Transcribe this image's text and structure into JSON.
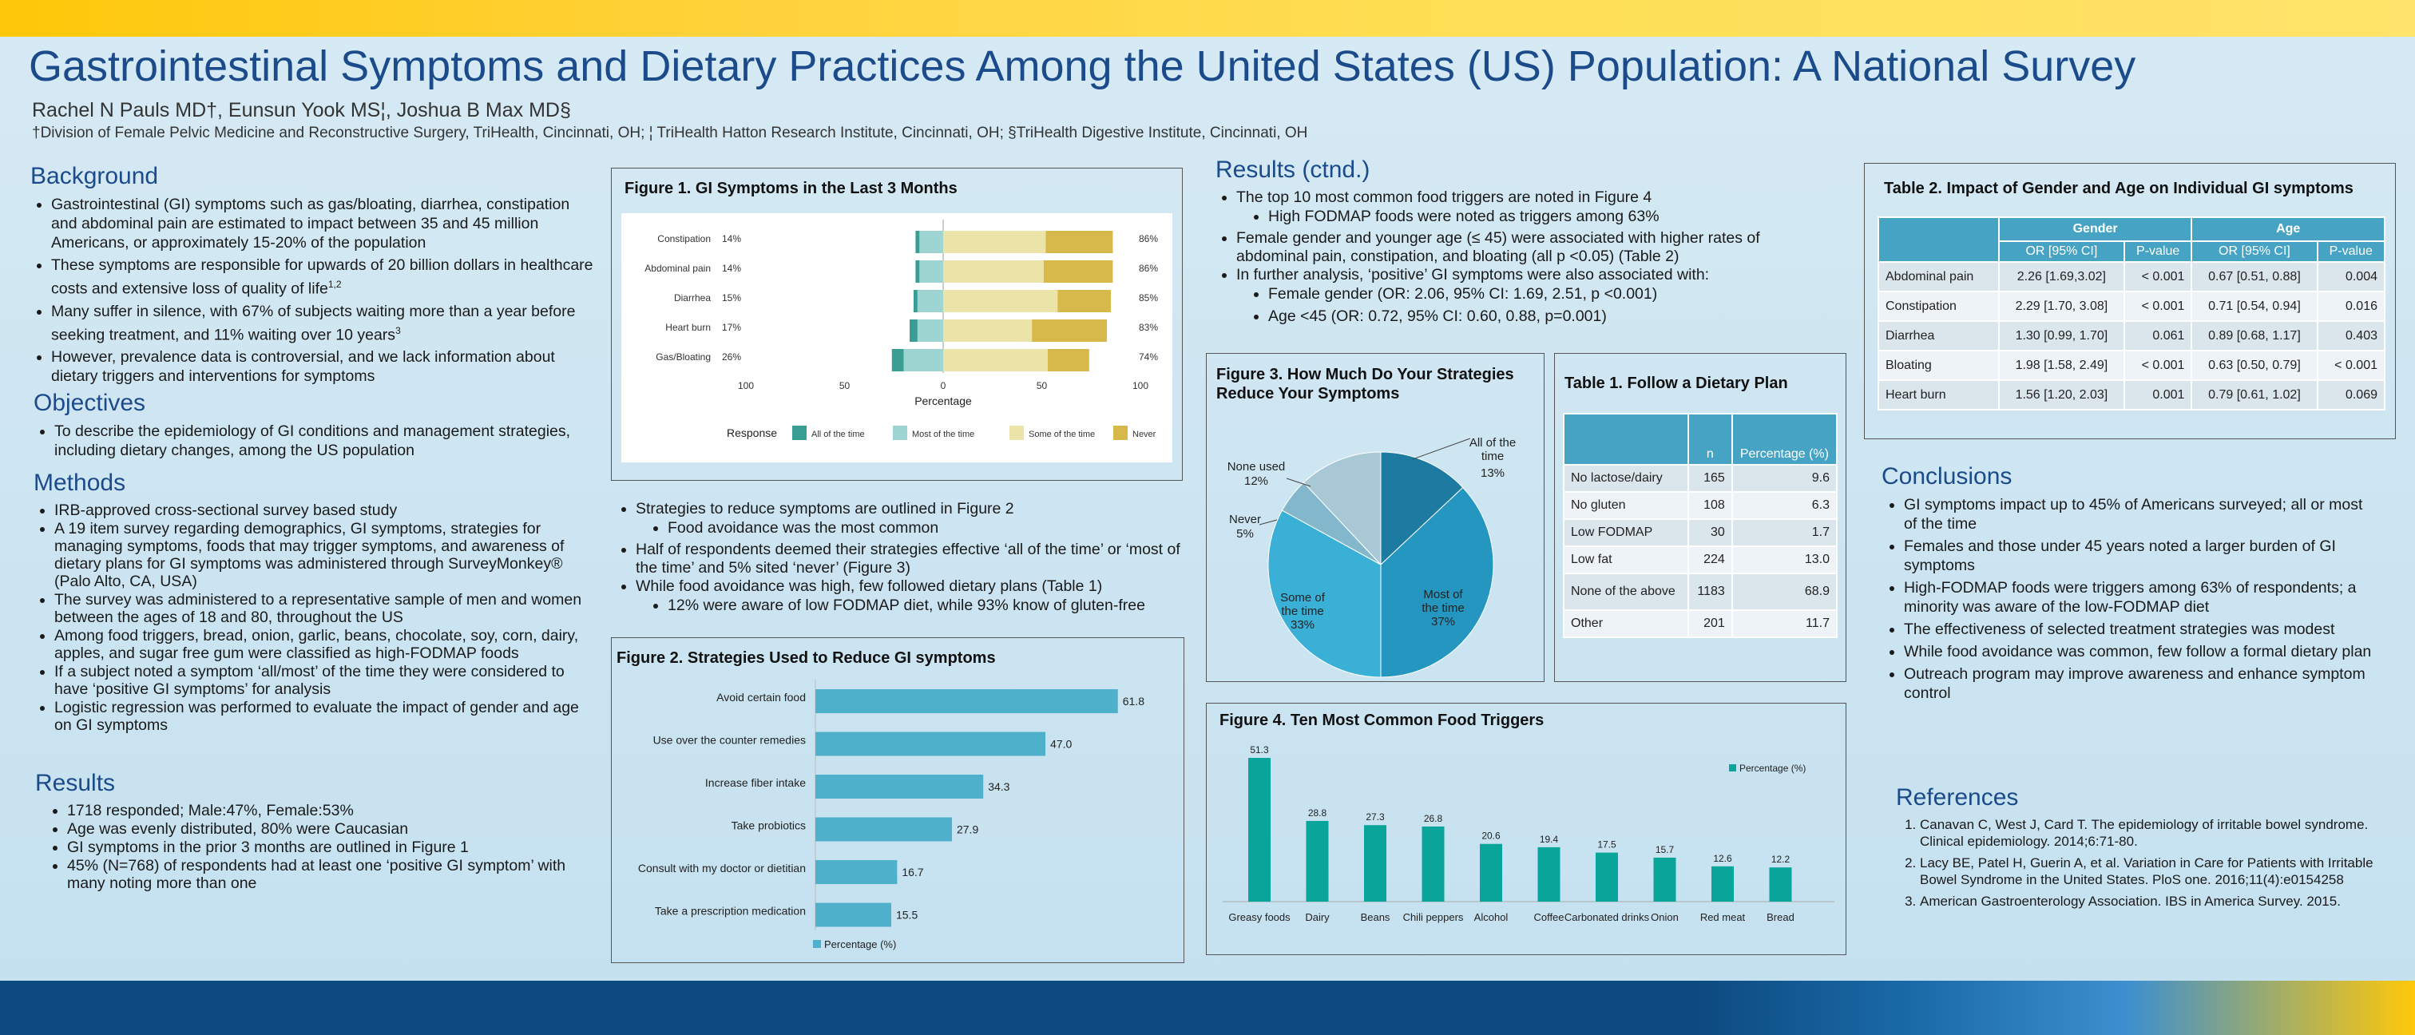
{
  "header": {
    "title": "Gastrointestinal Symptoms and Dietary Practices Among the United States (US) Population: A National Survey",
    "authors": "Rachel N Pauls MD†, Eunsun Yook MS¦, Joshua B Max MD§",
    "affiliations": "†Division of Female Pelvic Medicine and Reconstructive Surgery, TriHealth, Cincinnati, OH; ¦ TriHealth Hatton Research Institute, Cincinnati, OH; §TriHealth Digestive Institute, Cincinnati, OH"
  },
  "background": {
    "heading": "Background",
    "items": [
      "Gastrointestinal (GI) symptoms such as gas/bloating, diarrhea, constipation and abdominal pain are estimated to impact between 35 and 45 million Americans, or approximately 15-20% of the population",
      "These symptoms are responsible for upwards of 20 billion dollars in healthcare costs and extensive loss of quality of life",
      "Many suffer in silence, with 67% of subjects waiting more than a year before seeking treatment, and 11% waiting over 10 years",
      "However, prevalence data is controversial, and we lack information about dietary triggers and interventions for symptoms"
    ],
    "sup": [
      "",
      "1,2",
      "3",
      ""
    ]
  },
  "objectives": {
    "heading": "Objectives",
    "items": [
      "To describe the epidemiology of GI conditions and management strategies, including dietary changes, among the US population"
    ]
  },
  "methods": {
    "heading": "Methods",
    "items": [
      "IRB-approved cross-sectional survey based study",
      "A 19 item survey regarding demographics, GI symptoms, strategies for managing symptoms, foods that may trigger symptoms, and awareness of dietary plans for GI symptoms was administered through SurveyMonkey® (Palo Alto, CA, USA)",
      "The survey was administered to a representative sample of men and women between the ages of 18 and 80, throughout the US",
      "Among food triggers, bread, onion, garlic, beans, chocolate, soy, corn, dairy, apples, and sugar free gum were classified as high-FODMAP foods",
      "If a subject noted a symptom ‘all/most’ of the time they were considered to have ‘positive GI symptoms’ for analysis",
      "Logistic regression was performed to evaluate the impact of gender and age on GI symptoms"
    ]
  },
  "results": {
    "heading": "Results",
    "items": [
      "1718 responded; Male:47%, Female:53%",
      "Age was evenly distributed, 80% were Caucasian",
      "GI symptoms in the prior 3 months are outlined in Figure 1",
      "45% (N=768) of respondents had at least one ‘positive GI symptom’ with many noting more than one"
    ]
  },
  "middle_text": {
    "items": [
      {
        "text": "Strategies to reduce symptoms are outlined in Figure 2",
        "sub": [
          "Food avoidance was the most common"
        ]
      },
      {
        "text": "Half of respondents deemed their strategies effective ‘all of the time’  or ‘most of the time’ and  5% sited ‘never’ (Figure 3)",
        "sub": []
      },
      {
        "text": "While food avoidance was high, few followed dietary plans (Table 1)",
        "sub": [
          "12% were aware of low FODMAP diet, while 93% know of gluten-free"
        ]
      }
    ]
  },
  "results_ctnd": {
    "heading": "Results (ctnd.)",
    "items": [
      {
        "text": "The top 10 most common food triggers are noted in Figure 4",
        "sub": [
          "High FODMAP foods were noted as triggers among 63%"
        ]
      },
      {
        "text": "Female gender and younger age (≤ 45) were associated with higher rates of abdominal pain, constipation, and bloating (all p <0.05) (Table 2)",
        "sub": []
      },
      {
        "text": "In further analysis, ‘positive’ GI symptoms were also associated with:",
        "sub": [
          "Female gender (OR: 2.06, 95% CI: 1.69, 2.51, p <0.001)",
          "Age <45 (OR: 0.72, 95% CI: 0.60, 0.88, p=0.001)"
        ]
      }
    ]
  },
  "conclusions": {
    "heading": "Conclusions",
    "items": [
      "GI symptoms impact up to 45% of Americans surveyed; all or most of the time",
      "Females and  those under 45 years noted a larger burden of GI symptoms",
      "High-FODMAP foods were triggers among 63% of respondents; a minority was aware of the low-FODMAP diet",
      "The effectiveness of selected treatment strategies was modest",
      "While food avoidance was common, few follow a formal dietary plan",
      "Outreach program may improve awareness and enhance symptom control"
    ]
  },
  "references": {
    "heading": "References",
    "items": [
      "Canavan C, West J, Card T. The epidemiology of irritable bowel syndrome. Clinical epidemiology. 2014;6:71-80.",
      "Lacy BE, Patel H, Guerin A, et al. Variation in Care for Patients with Irritable Bowel Syndrome in the United States. PloS one. 2016;11(4):e0154258",
      "American Gastroenterology Association. IBS in America Survey. 2015."
    ]
  },
  "table1": {
    "title": "Table 1. Follow a Dietary Plan",
    "headers": [
      "",
      "n",
      "Percentage (%)"
    ],
    "rows": [
      [
        "No lactose/dairy",
        "165",
        "9.6"
      ],
      [
        "No gluten",
        "108",
        "6.3"
      ],
      [
        "Low FODMAP",
        "30",
        "1.7"
      ],
      [
        "Low fat",
        "224",
        "13.0"
      ],
      [
        "None of the above",
        "1183",
        "68.9"
      ],
      [
        "Other",
        "201",
        "11.7"
      ]
    ]
  },
  "table2": {
    "title": "Table 2. Impact of Gender and Age on Individual GI symptoms",
    "group_headers": [
      "Gender",
      "Age"
    ],
    "headers": [
      "",
      "OR [95% CI]",
      "P-value",
      "OR [95% CI]",
      "P-value"
    ],
    "rows": [
      [
        "Abdominal pain",
        "2.26 [1.69,3.02]",
        "< 0.001",
        "0.67 [0.51, 0.88]",
        "0.004"
      ],
      [
        "Constipation",
        "2.29 [1.70, 3.08]",
        "< 0.001",
        "0.71 [0.54, 0.94]",
        "0.016"
      ],
      [
        "Diarrhea",
        "1.30 [0.99, 1.70]",
        "0.061",
        "0.89 [0.68, 1.17]",
        "0.403"
      ],
      [
        "Bloating",
        "1.98 [1.58, 2.49]",
        "< 0.001",
        "0.63 [0.50, 0.79]",
        "< 0.001"
      ],
      [
        "Heart burn",
        "1.56 [1.20, 2.03]",
        "0.001",
        "0.79 [0.61, 1.02]",
        "0.069"
      ]
    ]
  },
  "colors": {
    "all": "#3a9d93",
    "most": "#9ed4d1",
    "some": "#ece3a8",
    "never": "#d6b94a",
    "bar": "#4fb0cb",
    "teal": "#0aa59a",
    "title": "#1b4b8a"
  },
  "chart_data": [
    {
      "id": "figure1",
      "type": "bar",
      "orientation": "horizontal-diverging",
      "title": "Figure 1. GI Symptoms in the Last 3 Months",
      "xlabel": "Percentage",
      "xlim": [
        -100,
        100
      ],
      "xticks": [
        "100",
        "50",
        "0",
        "50",
        "100"
      ],
      "legend_title": "Response",
      "categories": [
        "Constipation",
        "Abdominal pain",
        "Diarrhea",
        "Heart burn",
        "Gas/Bloating"
      ],
      "left_labels": [
        "14%",
        "14%",
        "15%",
        "17%",
        "26%"
      ],
      "right_labels": [
        "86%",
        "86%",
        "85%",
        "83%",
        "74%"
      ],
      "series": [
        {
          "name": "All of the time",
          "values": [
            2,
            2,
            2,
            4,
            6
          ]
        },
        {
          "name": "Most of the time",
          "values": [
            12,
            12,
            13,
            13,
            20
          ]
        },
        {
          "name": "Some of the time",
          "values": [
            52,
            51,
            58,
            45,
            53
          ]
        },
        {
          "name": "Never",
          "values": [
            34,
            35,
            27,
            38,
            21
          ]
        }
      ]
    },
    {
      "id": "figure2",
      "type": "bar",
      "orientation": "horizontal",
      "title": "Figure 2. Strategies Used to Reduce GI symptoms",
      "legend": "Percentage (%)",
      "categories": [
        "Avoid certain food",
        "Use over the counter remedies",
        "Increase fiber intake",
        "Take probiotics",
        "Consult with my doctor or dietitian",
        "Take a prescription medication"
      ],
      "values": [
        61.8,
        47.0,
        34.3,
        27.9,
        16.7,
        15.5
      ],
      "value_labels": [
        "61.8",
        "47.0",
        "34.3",
        "27.9",
        "16.7",
        "15.5"
      ],
      "xlim": [
        0,
        70
      ]
    },
    {
      "id": "figure3",
      "type": "pie",
      "title": "Figure 3. How Much Do Your Strategies Reduce Your Symptoms",
      "slices": [
        {
          "label": "All of the time",
          "pct": "13%",
          "value": 13
        },
        {
          "label": "Most of the time",
          "pct": "37%",
          "value": 37
        },
        {
          "label": "Some of the time",
          "pct": "33%",
          "value": 33
        },
        {
          "label": "Never",
          "pct": "5%",
          "value": 5
        },
        {
          "label": "None used",
          "pct": "12%",
          "value": 12
        }
      ]
    },
    {
      "id": "figure4",
      "type": "bar",
      "title": "Figure  4. Ten Most Common Food Triggers",
      "legend": "Percentage (%)",
      "categories": [
        "Greasy foods",
        "Dairy",
        "Beans",
        "Chili peppers",
        "Alcohol",
        "Coffee",
        "Carbonated drinks",
        "Onion",
        "Red meat",
        "Bread"
      ],
      "values": [
        51.3,
        28.8,
        27.3,
        26.8,
        20.6,
        19.4,
        17.5,
        15.7,
        12.6,
        12.2
      ],
      "value_labels": [
        "51.3",
        "28.8",
        "27.3",
        "26.8",
        "20.6",
        "19.4",
        "17.5",
        "15.7",
        "12.6",
        "12.2"
      ],
      "ylim": [
        0,
        55
      ]
    }
  ]
}
